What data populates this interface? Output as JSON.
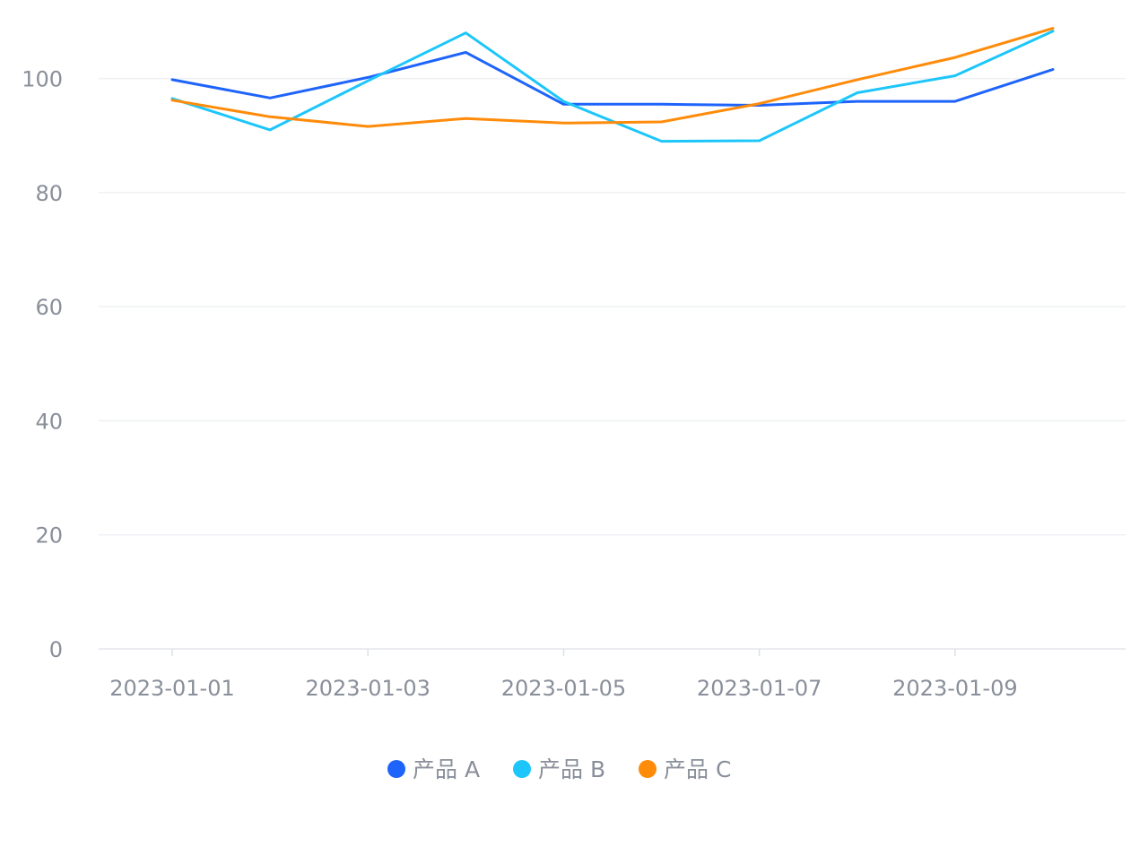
{
  "chart_data": {
    "type": "line",
    "title": "",
    "xlabel": "",
    "ylabel": "",
    "x": [
      "2023-01-01",
      "2023-01-02",
      "2023-01-03",
      "2023-01-04",
      "2023-01-05",
      "2023-01-06",
      "2023-01-07",
      "2023-01-08",
      "2023-01-09",
      "2023-01-10"
    ],
    "x_tick_labels": [
      "2023-01-01",
      "2023-01-03",
      "2023-01-05",
      "2023-01-07",
      "2023-01-09"
    ],
    "ylim": [
      0,
      110
    ],
    "y_ticks": [
      0,
      20,
      40,
      60,
      80,
      100
    ],
    "grid": true,
    "legend_position": "bottom-center",
    "series": [
      {
        "name": "产品 A",
        "color": "#1E64FA",
        "values": [
          99.8,
          96.6,
          100.2,
          104.6,
          95.5,
          95.5,
          95.3,
          96.0,
          96.0,
          101.6
        ]
      },
      {
        "name": "产品 B",
        "color": "#1DC6FA",
        "values": [
          96.5,
          91.0,
          99.6,
          108.0,
          96.0,
          89.0,
          89.1,
          97.5,
          100.5,
          108.3
        ]
      },
      {
        "name": "产品 C",
        "color": "#FF8B0A",
        "values": [
          96.2,
          93.3,
          91.6,
          93.0,
          92.2,
          92.4,
          95.6,
          99.8,
          103.7,
          108.8
        ]
      }
    ]
  }
}
